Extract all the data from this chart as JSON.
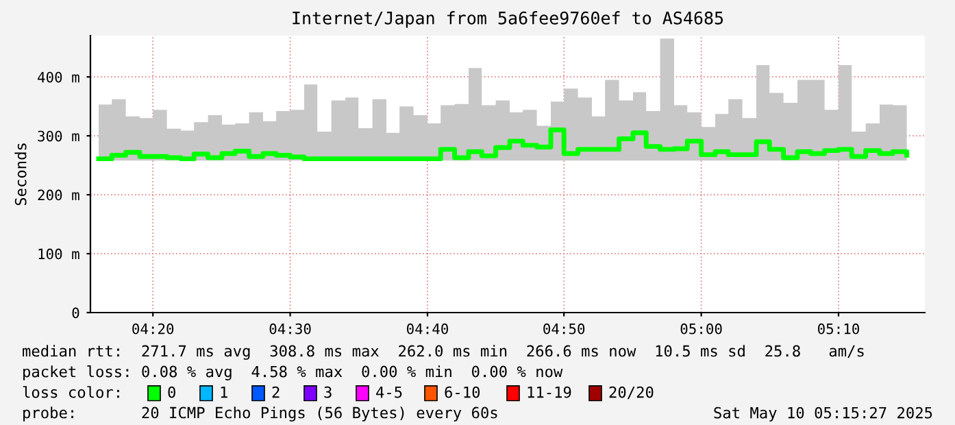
{
  "chart_data": {
    "type": "step",
    "title": "Internet/Japan from 5a6fee9760ef to AS4685",
    "ylabel": "Seconds",
    "x": [
      4.267,
      4.283,
      4.3,
      4.317,
      4.333,
      4.35,
      4.367,
      4.383,
      4.4,
      4.417,
      4.433,
      4.45,
      4.467,
      4.483,
      4.5,
      4.517,
      4.533,
      4.55,
      4.567,
      4.583,
      4.6,
      4.617,
      4.633,
      4.65,
      4.667,
      4.683,
      4.7,
      4.717,
      4.733,
      4.75,
      4.767,
      4.783,
      4.8,
      4.817,
      4.833,
      4.85,
      4.867,
      4.883,
      4.9,
      4.917,
      4.933,
      4.95,
      4.967,
      4.983,
      5.0,
      5.017,
      5.033,
      5.05,
      5.067,
      5.083,
      5.1,
      5.117,
      5.133,
      5.15,
      5.167,
      5.183,
      5.2,
      5.217,
      5.233,
      5.25
    ],
    "series": [
      {
        "color": "#00ff00",
        "values": [
          261,
          267,
          272,
          265,
          265,
          263,
          261,
          269,
          263,
          270,
          274,
          265,
          270,
          267,
          264,
          261,
          261,
          261,
          261,
          261,
          261,
          261,
          261,
          261,
          261,
          277,
          263,
          273,
          266,
          280,
          291,
          284,
          281,
          310,
          270,
          277,
          277,
          277,
          295,
          305,
          282,
          277,
          278,
          291,
          268,
          273,
          268,
          268,
          290,
          277,
          263,
          273,
          270,
          275,
          277,
          265,
          275,
          270,
          273,
          267
        ],
        "lower": [
          258,
          258,
          258,
          258,
          258,
          258,
          258,
          258,
          258,
          258,
          258,
          258,
          258,
          258,
          258,
          258,
          258,
          258,
          258,
          258,
          258,
          258,
          258,
          258,
          258,
          258,
          258,
          258,
          258,
          258,
          258,
          258,
          258,
          258,
          258,
          258,
          258,
          258,
          258,
          258,
          258,
          258,
          258,
          258,
          258,
          258,
          258,
          258,
          258,
          258,
          258,
          258,
          258,
          258,
          258,
          258,
          258,
          258,
          258,
          258
        ],
        "upper": [
          353,
          362,
          333,
          330,
          344,
          312,
          309,
          323,
          335,
          319,
          321,
          340,
          325,
          342,
          344,
          387,
          307,
          360,
          365,
          313,
          362,
          305,
          350,
          335,
          321,
          352,
          354,
          415,
          352,
          360,
          340,
          344,
          317,
          358,
          380,
          365,
          333,
          395,
          360,
          374,
          342,
          465,
          352,
          340,
          315,
          337,
          362,
          330,
          420,
          373,
          356,
          395,
          395,
          344,
          420,
          307,
          321,
          353,
          352,
          322
        ]
      }
    ],
    "xlim": [
      4.257,
      5.272
    ],
    "xticks": [
      {
        "value": 4.333,
        "label": "04:20"
      },
      {
        "value": 4.5,
        "label": "04:30"
      },
      {
        "value": 4.667,
        "label": "04:40"
      },
      {
        "value": 4.833,
        "label": "04:50"
      },
      {
        "value": 5.0,
        "label": "05:00"
      },
      {
        "value": 5.167,
        "label": "05:10"
      }
    ],
    "ylim": [
      0,
      470
    ],
    "yticks": [
      0,
      {
        "value": 100,
        "label": "100 m"
      },
      {
        "value": 200,
        "label": "200 m"
      },
      {
        "value": 300,
        "label": "300 m"
      },
      {
        "value": 400,
        "label": "400 m"
      }
    ],
    "grid": true,
    "annotations": [
      "median rtt:  271.7 ms avg  308.8 ms max  262.0 ms min  266.6 ms now  10.5 ms sd  25.8   am/s",
      "packet loss: 0.08 % avg  4.58 % max  0.00 % min  0.00 % now",
      "loss color:",
      "0",
      "1",
      "2",
      "3",
      "4-5",
      "6-10",
      "11-19",
      "20/20",
      "probe:       20 ICMP Echo Pings (56 Bytes) every 60s",
      "Sat May 10 05:15:27 2025"
    ]
  }
}
